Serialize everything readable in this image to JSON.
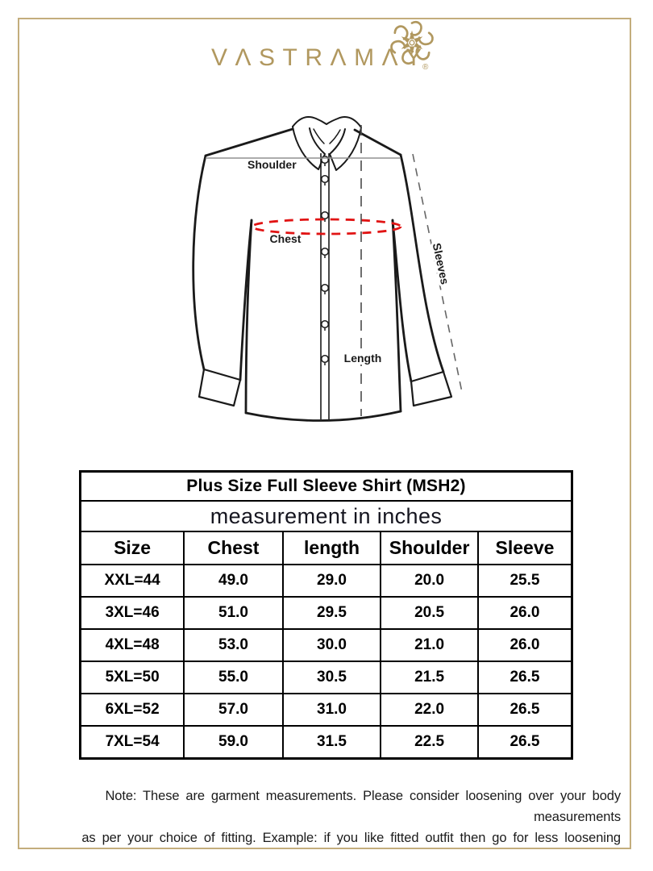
{
  "brand": {
    "display_name": "VΛSTRΛMΛY",
    "registered_mark": "®"
  },
  "diagram": {
    "shoulder_label": "Shoulder",
    "chest_label": "Chest",
    "length_label": "Length",
    "sleeves_label": "Sleeves"
  },
  "size_chart": {
    "title": "Plus Size Full Sleeve Shirt (MSH2)",
    "subtitle": "measurement in inches",
    "columns": [
      "Size",
      "Chest",
      "length",
      "Shoulder",
      "Sleeve"
    ],
    "rows": [
      [
        "XXL=44",
        "49.0",
        "29.0",
        "20.0",
        "25.5"
      ],
      [
        "3XL=46",
        "51.0",
        "29.5",
        "20.5",
        "26.0"
      ],
      [
        "4XL=48",
        "53.0",
        "30.0",
        "21.0",
        "26.0"
      ],
      [
        "5XL=50",
        "55.0",
        "30.5",
        "21.5",
        "26.5"
      ],
      [
        "6XL=52",
        "57.0",
        "31.0",
        "22.0",
        "26.5"
      ],
      [
        "7XL=54",
        "59.0",
        "31.5",
        "22.5",
        "26.5"
      ]
    ]
  },
  "note": {
    "line1": "Note: These are garment measurements. Please consider loosening over your body measurements",
    "line2": "as per your choice of fitting. Example: if you like fitted outfit then go for less loosening"
  },
  "colors": {
    "brand_gold": "#b1985f",
    "frame_gold": "#c3ad7c",
    "chest_dash_red": "#e11414",
    "line_gray": "#909090",
    "table_border_black": "#000000"
  }
}
